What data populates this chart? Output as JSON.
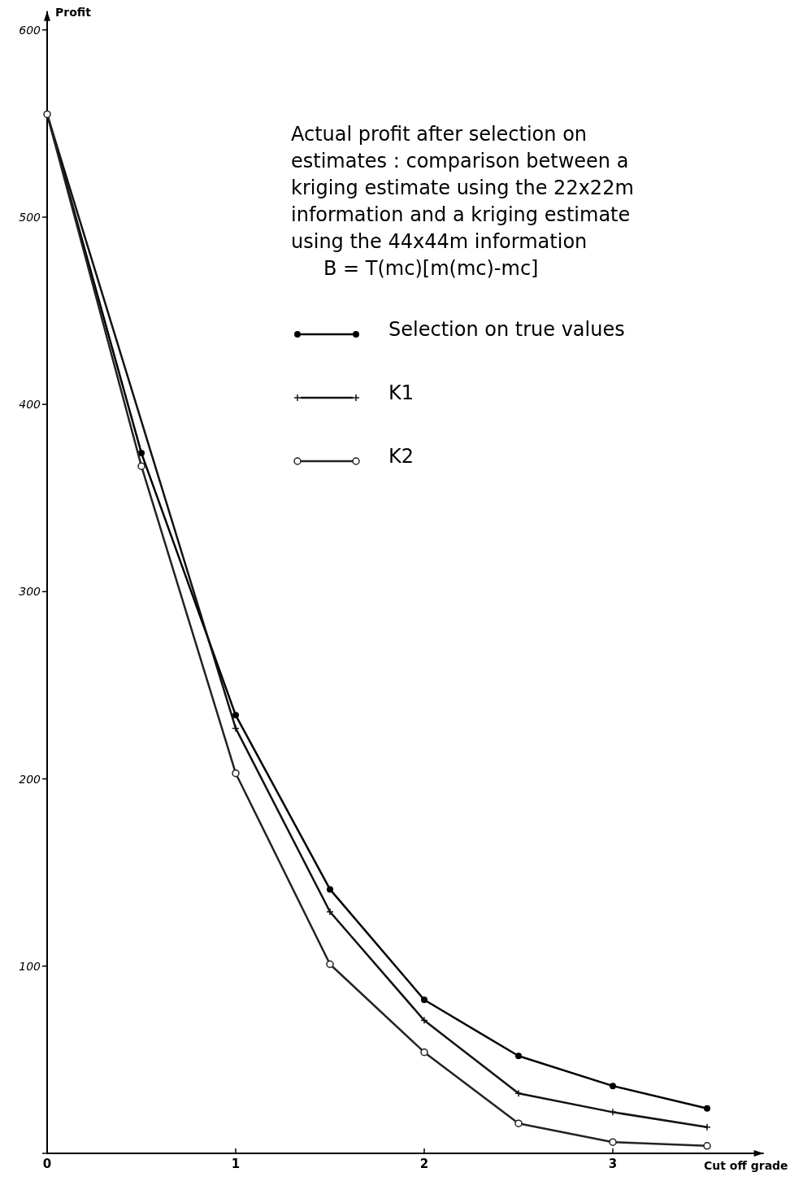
{
  "chart_data": {
    "type": "line",
    "title": "Actual profit after selection on estimates : comparison between a kriging estimate using the 22x22m information and a kriging estimate using the 44x44m information",
    "annotations": [
      "B = T(mc)[m(mc)-mc]"
    ],
    "xlabel": "Cut off grade",
    "ylabel": "Profit",
    "x": [
      0,
      0.5,
      1,
      1.5,
      2,
      2.5,
      3,
      3.5
    ],
    "series": [
      {
        "name": "Selection on true values",
        "color": "#000000",
        "marker": "circle",
        "values": [
          555,
          374,
          234,
          141,
          82,
          52,
          36,
          24
        ]
      },
      {
        "name": "K1",
        "color": "#111111",
        "marker": "cross",
        "values": [
          555,
          null,
          227,
          129,
          71,
          32,
          22,
          14
        ]
      },
      {
        "name": "K2",
        "color": "#222222",
        "marker": "circle",
        "values": [
          555,
          367,
          203,
          101,
          54,
          16,
          6,
          4
        ]
      }
    ],
    "xlim": [
      0,
      3.8
    ],
    "xticks": [
      0,
      1,
      2,
      3
    ],
    "ylim": [
      0,
      610
    ],
    "yticks": [
      {
        "value": 0,
        "label": null
      },
      100,
      200,
      300,
      400,
      500,
      600
    ],
    "grid": false,
    "legend": "top right",
    "line_style": "solid"
  }
}
